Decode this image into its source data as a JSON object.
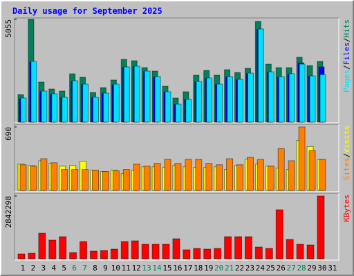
{
  "title": "Daily usage for September 2025",
  "chart_data": [
    {
      "type": "bar",
      "series": [
        {
          "name": "Hits",
          "color": "#00805c",
          "values": [
            1357,
            5055,
            1968,
            1628,
            1527,
            2375,
            2205,
            1459,
            1696,
            2070,
            3087,
            3019,
            2680,
            2510,
            1764,
            1187,
            1493,
            2307,
            2544,
            2307,
            2578,
            2443,
            2646,
            4953,
            2850,
            2680,
            2680,
            3189,
            2782,
            2985,
            null
          ]
        },
        {
          "name": "Files",
          "color": "#0000ff",
          "values": [
            1150,
            2950,
            1500,
            1370,
            1200,
            2000,
            1840,
            1200,
            1400,
            1840,
            2690,
            2720,
            2480,
            2210,
            1470,
            860,
            1100,
            1980,
            2150,
            1840,
            2210,
            2080,
            2380,
            4550,
            2450,
            2210,
            2350,
            2917,
            2250,
            2714,
            null
          ]
        },
        {
          "name": "Pages",
          "color": "#00e0ff",
          "values": [
            1187,
            2985,
            1527,
            1391,
            1221,
            2036,
            1866,
            1221,
            1425,
            1866,
            2714,
            2748,
            2510,
            2239,
            1493,
            882,
            1120,
            2002,
            2171,
            1866,
            2239,
            2103,
            2409,
            4580,
            2477,
            2239,
            2375,
            2850,
            2273,
            2341,
            null
          ]
        }
      ],
      "ylim": [
        0,
        5055
      ],
      "yticks": [
        5055
      ],
      "legend_separator": "/"
    },
    {
      "type": "bar",
      "series": [
        {
          "name": "Visits",
          "color": "#ffff00",
          "values": [
            286,
            272,
            323,
            294,
            264,
            272,
            316,
            220,
            206,
            220,
            184,
            220,
            257,
            257,
            250,
            272,
            257,
            250,
            250,
            257,
            228,
            272,
            338,
            286,
            264,
            242,
            228,
            543,
            477,
            338,
            null
          ]
        },
        {
          "name": "Sites",
          "color": "#ff8000",
          "values": [
            279,
            264,
            345,
            301,
            228,
            228,
            228,
            220,
            206,
            213,
            228,
            286,
            264,
            294,
            338,
            294,
            338,
            338,
            294,
            279,
            345,
            279,
            360,
            338,
            264,
            455,
            323,
            690,
            433,
            338,
            null
          ]
        }
      ],
      "ylim": [
        0,
        690
      ],
      "yticks": [
        690
      ],
      "legend_separator": "/"
    },
    {
      "type": "bar",
      "categories": [
        "1",
        "2",
        "3",
        "4",
        "5",
        "6",
        "7",
        "8",
        "9",
        "10",
        "11",
        "12",
        "13",
        "14",
        "15",
        "16",
        "17",
        "18",
        "19",
        "20",
        "21",
        "22",
        "23",
        "24",
        "25",
        "26",
        "27",
        "28",
        "29",
        "30",
        "31"
      ],
      "category_colors": [
        "#000000",
        "#000000",
        "#000000",
        "#000000",
        "#000000",
        "#00805c",
        "#00805c",
        "#000000",
        "#000000",
        "#000000",
        "#000000",
        "#000000",
        "#00805c",
        "#00805c",
        "#000000",
        "#000000",
        "#000000",
        "#000000",
        "#000000",
        "#00805c",
        "#00805c",
        "#000000",
        "#000000",
        "#000000",
        "#000000",
        "#000000",
        "#00805c",
        "#00805c",
        "#000000",
        "#000000",
        "#000000"
      ],
      "series": [
        {
          "name": "KBytes",
          "color": "#ff0000",
          "values": [
            218637,
            249870,
            1155646,
            843322,
            999493,
            281104,
            780853,
            343573,
            374808,
            437276,
            780853,
            812087,
            655917,
            655917,
            655917,
            905789,
            406041,
            468511,
            437276,
            468511,
            999493,
            999493,
            999493,
            530981,
            468511,
            2217641,
            874556,
            655917,
            624683,
            2842298,
            null
          ]
        }
      ],
      "ylim": [
        0,
        2842298
      ],
      "yticks": [
        2842298
      ]
    }
  ]
}
